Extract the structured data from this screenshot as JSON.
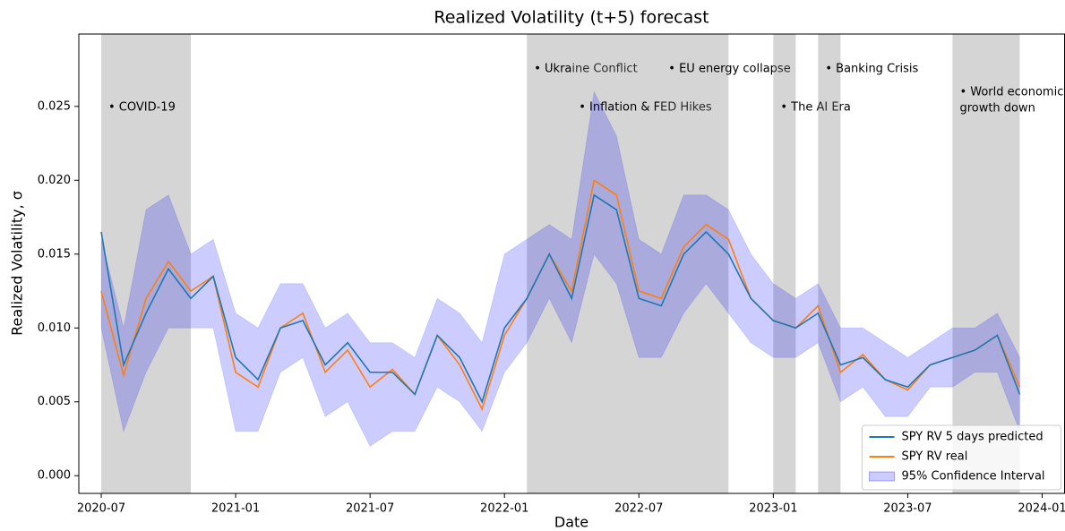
{
  "chart_data": {
    "type": "line",
    "title": "Realized Volatility (t+5) forecast",
    "xlabel": "Date",
    "ylabel": "Realized Volatility, σ",
    "x": [
      "2020-07",
      "2020-08",
      "2020-09",
      "2020-10",
      "2020-11",
      "2020-12",
      "2021-01",
      "2021-02",
      "2021-03",
      "2021-04",
      "2021-05",
      "2021-06",
      "2021-07",
      "2021-08",
      "2021-09",
      "2021-10",
      "2021-11",
      "2021-12",
      "2022-01",
      "2022-02",
      "2022-03",
      "2022-04",
      "2022-05",
      "2022-06",
      "2022-07",
      "2022-08",
      "2022-09",
      "2022-10",
      "2022-11",
      "2022-12",
      "2023-01",
      "2023-02",
      "2023-03",
      "2023-04",
      "2023-05",
      "2023-06",
      "2023-07",
      "2023-08",
      "2023-09",
      "2023-10",
      "2023-11",
      "2023-12"
    ],
    "series": [
      {
        "name": "SPY RV 5 days predicted",
        "color": "#1f77b4",
        "values": [
          0.0165,
          0.0075,
          0.011,
          0.014,
          0.012,
          0.0135,
          0.008,
          0.0065,
          0.01,
          0.0105,
          0.0075,
          0.009,
          0.007,
          0.007,
          0.0055,
          0.0095,
          0.008,
          0.005,
          0.01,
          0.012,
          0.015,
          0.012,
          0.019,
          0.018,
          0.012,
          0.0115,
          0.015,
          0.0165,
          0.015,
          0.012,
          0.0105,
          0.01,
          0.011,
          0.0075,
          0.008,
          0.0065,
          0.006,
          0.0075,
          0.008,
          0.0085,
          0.0095,
          0.0055
        ]
      },
      {
        "name": "SPY RV real",
        "color": "#ff7f0e",
        "values": [
          0.0125,
          0.0068,
          0.012,
          0.0145,
          0.0125,
          0.0135,
          0.007,
          0.006,
          0.01,
          0.011,
          0.007,
          0.0085,
          0.006,
          0.0072,
          0.0055,
          0.0095,
          0.0075,
          0.0045,
          0.0095,
          0.012,
          0.015,
          0.0125,
          0.02,
          0.019,
          0.0125,
          0.012,
          0.0155,
          0.017,
          0.016,
          0.012,
          0.0105,
          0.01,
          0.0115,
          0.007,
          0.0082,
          0.0065,
          0.0058,
          0.0075,
          0.008,
          0.0085,
          0.0095,
          0.006
        ]
      },
      {
        "name": "95% Confidence Interval",
        "color": "#0000ff",
        "type": "band",
        "lower": [
          0.01,
          0.003,
          0.007,
          0.01,
          0.01,
          0.01,
          0.003,
          0.003,
          0.007,
          0.008,
          0.004,
          0.005,
          0.002,
          0.003,
          0.003,
          0.006,
          0.005,
          0.003,
          0.007,
          0.009,
          0.012,
          0.009,
          0.015,
          0.013,
          0.008,
          0.008,
          0.011,
          0.013,
          0.011,
          0.009,
          0.008,
          0.008,
          0.009,
          0.005,
          0.006,
          0.004,
          0.004,
          0.006,
          0.006,
          0.007,
          0.007,
          0.003
        ],
        "upper": [
          0.016,
          0.01,
          0.018,
          0.019,
          0.015,
          0.016,
          0.011,
          0.01,
          0.013,
          0.013,
          0.01,
          0.011,
          0.009,
          0.009,
          0.008,
          0.012,
          0.011,
          0.009,
          0.015,
          0.016,
          0.017,
          0.016,
          0.026,
          0.023,
          0.016,
          0.015,
          0.019,
          0.019,
          0.018,
          0.015,
          0.013,
          0.012,
          0.013,
          0.01,
          0.01,
          0.009,
          0.008,
          0.009,
          0.01,
          0.01,
          0.011,
          0.008
        ]
      }
    ],
    "spans": [
      {
        "start": "2020-07",
        "end": "2020-11",
        "label": [
          "• COVID-19"
        ]
      },
      {
        "start": "2022-02",
        "end": "2022-04",
        "label": [
          "• Ukraine Conflict"
        ]
      },
      {
        "start": "2022-04",
        "end": "2022-08",
        "label": [
          "• Inflation & FED Hikes"
        ]
      },
      {
        "start": "2022-08",
        "end": "2022-11",
        "label": [
          "• EU energy collapse"
        ]
      },
      {
        "start": "2023-01",
        "end": "2023-02",
        "label": [
          "• The AI Era"
        ]
      },
      {
        "start": "2023-03",
        "end": "2023-04",
        "label": [
          "• Banking Crisis"
        ]
      },
      {
        "start": "2023-09",
        "end": "2023-12",
        "label": [
          "• World economic",
          "growth down"
        ]
      }
    ],
    "xlim": [
      "2020-06",
      "2024-02"
    ],
    "xticks": [
      "2020-07",
      "2021-01",
      "2021-07",
      "2022-01",
      "2022-07",
      "2023-01",
      "2023-07",
      "2024-01"
    ],
    "ylim": [
      -0.0012,
      0.0299
    ],
    "yticks": [
      {
        "value": 0,
        "label": "0.000"
      },
      {
        "value": 0.005,
        "label": "0.005"
      },
      {
        "value": 0.01,
        "label": "0.010"
      },
      {
        "value": 0.015,
        "label": "0.015"
      },
      {
        "value": 0.02,
        "label": "0.020"
      },
      {
        "value": 0.025,
        "label": "0.025"
      }
    ],
    "grid": false,
    "legend": "lower right"
  }
}
